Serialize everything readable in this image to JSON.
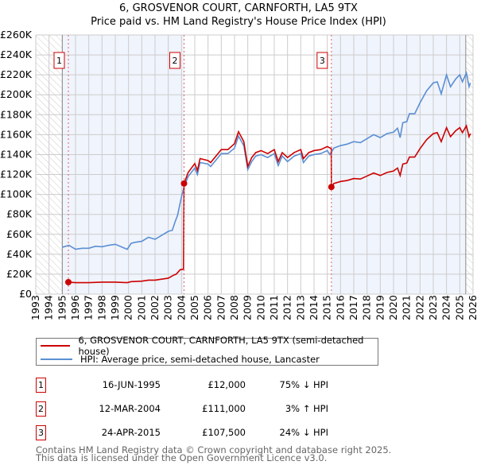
{
  "chart_data": {
    "type": "line",
    "title": "6, GROSVENOR COURT, CARNFORTH, LA5 9TX",
    "subtitle": "Price paid vs. HM Land Registry's House Price Index (HPI)",
    "xlim": [
      1993,
      2026
    ],
    "ylim": [
      0,
      260000
    ],
    "y_ticks": [
      0,
      20000,
      40000,
      60000,
      80000,
      100000,
      120000,
      140000,
      160000,
      180000,
      200000,
      220000,
      240000,
      260000
    ],
    "y_tick_labels": [
      "£0",
      "£20K",
      "£40K",
      "£60K",
      "£80K",
      "£100K",
      "£120K",
      "£140K",
      "£160K",
      "£180K",
      "£200K",
      "£220K",
      "£240K",
      "£260K"
    ],
    "x_tick_labels": [
      "1993",
      "1994",
      "1995",
      "1996",
      "1997",
      "1998",
      "1999",
      "2000",
      "2001",
      "2002",
      "2003",
      "2004",
      "2005",
      "2006",
      "2007",
      "2008",
      "2009",
      "2010",
      "2011",
      "2012",
      "2013",
      "2014",
      "2015",
      "2016",
      "2017",
      "2018",
      "2019",
      "2020",
      "2021",
      "2022",
      "2023",
      "2024",
      "2025",
      "2026"
    ],
    "grid": true,
    "hatched_ranges": [
      [
        1993,
        1995
      ],
      [
        2025.45,
        2026
      ]
    ],
    "shaded_ranges": [
      [
        1995,
        2004.19
      ],
      [
        2015.31,
        2025.45
      ]
    ],
    "series": [
      {
        "name": "6, GROSVENOR COURT, CARNFORTH, LA5 9TX (semi-detached house)",
        "color": "#cc0000",
        "points": [
          [
            1995.46,
            12
          ],
          [
            1996,
            11.5
          ],
          [
            1997,
            11.5
          ],
          [
            1998,
            12
          ],
          [
            1999,
            12
          ],
          [
            1999.9,
            11.5
          ],
          [
            2000.2,
            12.5
          ],
          [
            2001,
            13
          ],
          [
            2001.5,
            14
          ],
          [
            2002,
            14
          ],
          [
            2002.5,
            15
          ],
          [
            2003,
            16
          ],
          [
            2003.4,
            19
          ],
          [
            2003.6,
            20
          ],
          [
            2003.9,
            24.5
          ],
          [
            2004.15,
            25
          ],
          [
            2004.19,
            111
          ],
          [
            2004.5,
            122
          ],
          [
            2005,
            131
          ],
          [
            2005.2,
            124
          ],
          [
            2005.4,
            136
          ],
          [
            2006,
            134
          ],
          [
            2006.2,
            132
          ],
          [
            2007,
            145
          ],
          [
            2007.5,
            145
          ],
          [
            2008,
            151
          ],
          [
            2008.3,
            163
          ],
          [
            2008.7,
            153
          ],
          [
            2009,
            128
          ],
          [
            2009.3,
            137
          ],
          [
            2009.6,
            142
          ],
          [
            2010,
            144
          ],
          [
            2010.5,
            141
          ],
          [
            2011,
            145
          ],
          [
            2011.3,
            133
          ],
          [
            2011.6,
            142
          ],
          [
            2012,
            137
          ],
          [
            2012.5,
            142
          ],
          [
            2013,
            145
          ],
          [
            2013.2,
            136
          ],
          [
            2013.6,
            142
          ],
          [
            2014,
            144
          ],
          [
            2014.5,
            145
          ],
          [
            2015,
            148
          ],
          [
            2015.3,
            146
          ],
          [
            2015.31,
            107.5
          ],
          [
            2015.5,
            111
          ],
          [
            2016,
            113
          ],
          [
            2016.5,
            114
          ],
          [
            2017,
            116
          ],
          [
            2017.5,
            115.5
          ],
          [
            2018,
            118.5
          ],
          [
            2018.5,
            121.5
          ],
          [
            2019,
            119
          ],
          [
            2019.5,
            122
          ],
          [
            2020,
            123.5
          ],
          [
            2020.3,
            126.5
          ],
          [
            2020.5,
            119
          ],
          [
            2020.7,
            130.5
          ],
          [
            2021,
            131.5
          ],
          [
            2021.2,
            137.5
          ],
          [
            2021.6,
            137.5
          ],
          [
            2022,
            146
          ],
          [
            2022.5,
            155
          ],
          [
            2023,
            161
          ],
          [
            2023.3,
            162
          ],
          [
            2023.6,
            153
          ],
          [
            2024,
            167
          ],
          [
            2024.3,
            158
          ],
          [
            2024.7,
            164
          ],
          [
            2025,
            167
          ],
          [
            2025.2,
            162
          ],
          [
            2025.5,
            169
          ],
          [
            2025.7,
            158
          ],
          [
            2025.8,
            161
          ]
        ]
      },
      {
        "name": "HPI: Average price, semi-detached house, Lancaster",
        "color": "#5b8fd4",
        "points": [
          [
            1995,
            47
          ],
          [
            1995.5,
            49
          ],
          [
            1996,
            45
          ],
          [
            1996.5,
            46
          ],
          [
            1997,
            46
          ],
          [
            1997.5,
            48
          ],
          [
            1998,
            47.5
          ],
          [
            1998.5,
            49
          ],
          [
            1999,
            50
          ],
          [
            1999.9,
            45
          ],
          [
            2000.2,
            51
          ],
          [
            2000.5,
            52
          ],
          [
            2001,
            53
          ],
          [
            2001.5,
            57
          ],
          [
            2002,
            55
          ],
          [
            2002.5,
            59
          ],
          [
            2003,
            63
          ],
          [
            2003.3,
            64
          ],
          [
            2003.5,
            72
          ],
          [
            2003.7,
            79
          ],
          [
            2004,
            98
          ],
          [
            2004.2,
            108
          ],
          [
            2004.5,
            118
          ],
          [
            2005,
            126.5
          ],
          [
            2005.2,
            120
          ],
          [
            2005.4,
            132
          ],
          [
            2006,
            130.5
          ],
          [
            2006.2,
            128
          ],
          [
            2007,
            141
          ],
          [
            2007.5,
            141
          ],
          [
            2008,
            146.5
          ],
          [
            2008.3,
            158.5
          ],
          [
            2008.7,
            149
          ],
          [
            2009,
            125
          ],
          [
            2009.3,
            133
          ],
          [
            2009.6,
            138.5
          ],
          [
            2010,
            140
          ],
          [
            2010.5,
            137
          ],
          [
            2011,
            141
          ],
          [
            2011.3,
            129
          ],
          [
            2011.6,
            138.5
          ],
          [
            2012,
            133
          ],
          [
            2012.5,
            138.5
          ],
          [
            2013,
            141
          ],
          [
            2013.2,
            132
          ],
          [
            2013.6,
            138.5
          ],
          [
            2014,
            140
          ],
          [
            2014.5,
            141
          ],
          [
            2015,
            144
          ],
          [
            2015.2,
            140
          ],
          [
            2015.5,
            146.5
          ],
          [
            2016,
            149
          ],
          [
            2016.5,
            150.5
          ],
          [
            2017,
            153
          ],
          [
            2017.5,
            152
          ],
          [
            2018,
            156
          ],
          [
            2018.5,
            160
          ],
          [
            2019,
            157
          ],
          [
            2019.5,
            161
          ],
          [
            2020,
            162.5
          ],
          [
            2020.3,
            166.5
          ],
          [
            2020.5,
            157
          ],
          [
            2020.7,
            172
          ],
          [
            2021,
            173
          ],
          [
            2021.2,
            181
          ],
          [
            2021.6,
            181
          ],
          [
            2022,
            192
          ],
          [
            2022.5,
            204
          ],
          [
            2023,
            212
          ],
          [
            2023.3,
            213
          ],
          [
            2023.6,
            201
          ],
          [
            2024,
            220
          ],
          [
            2024.3,
            208
          ],
          [
            2024.7,
            216
          ],
          [
            2025,
            220
          ],
          [
            2025.2,
            213
          ],
          [
            2025.5,
            222
          ],
          [
            2025.7,
            208
          ],
          [
            2025.8,
            212
          ]
        ]
      }
    ],
    "value_unit_multiplier": 1000,
    "sales": [
      {
        "label": "1",
        "x": 2004.19,
        "x_sale": 1995.46,
        "price": 12
      },
      {
        "label": "2",
        "x_sale": 2004.19,
        "price": 111
      },
      {
        "label": "3",
        "x_sale": 2015.31,
        "price": 107.5
      }
    ],
    "legend_placement": "below"
  },
  "transactions": [
    {
      "num": "1",
      "date": "16-JUN-1995",
      "price": "£12,000",
      "hpi": "75% ↓ HPI"
    },
    {
      "num": "2",
      "date": "12-MAR-2004",
      "price": "£111,000",
      "hpi": "3% ↑ HPI"
    },
    {
      "num": "3",
      "date": "24-APR-2015",
      "price": "£107,500",
      "hpi": "24% ↓ HPI"
    }
  ],
  "footer": {
    "line1": "Contains HM Land Registry data © Crown copyright and database right 2025.",
    "line2": "This data is licensed under the Open Government Licence v3.0."
  }
}
